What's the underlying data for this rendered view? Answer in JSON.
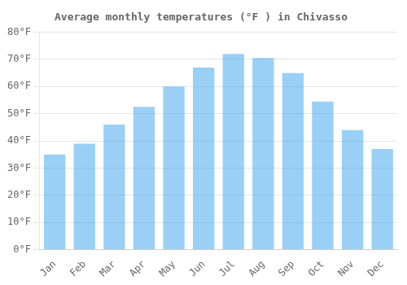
{
  "chart_data": {
    "type": "bar",
    "title": "Average monthly temperatures (°F ) in Chivasso",
    "categories": [
      "Jan",
      "Feb",
      "Mar",
      "Apr",
      "May",
      "Jun",
      "Jul",
      "Aug",
      "Sep",
      "Oct",
      "Nov",
      "Dec"
    ],
    "values": [
      35,
      39,
      46,
      52.5,
      60,
      67,
      72,
      70.5,
      65,
      54.5,
      44,
      37
    ],
    "ylim": [
      0,
      80
    ],
    "yticks": [
      {
        "value": 0,
        "label": "0°F"
      },
      {
        "value": 10,
        "label": "10°F"
      },
      {
        "value": 20,
        "label": "20°F"
      },
      {
        "value": 30,
        "label": "30°F"
      },
      {
        "value": 40,
        "label": "40°F"
      },
      {
        "value": 50,
        "label": "50°F"
      },
      {
        "value": 60,
        "label": "60°F"
      },
      {
        "value": 70,
        "label": "70°F"
      },
      {
        "value": 80,
        "label": "80°F"
      }
    ],
    "grid": true
  }
}
